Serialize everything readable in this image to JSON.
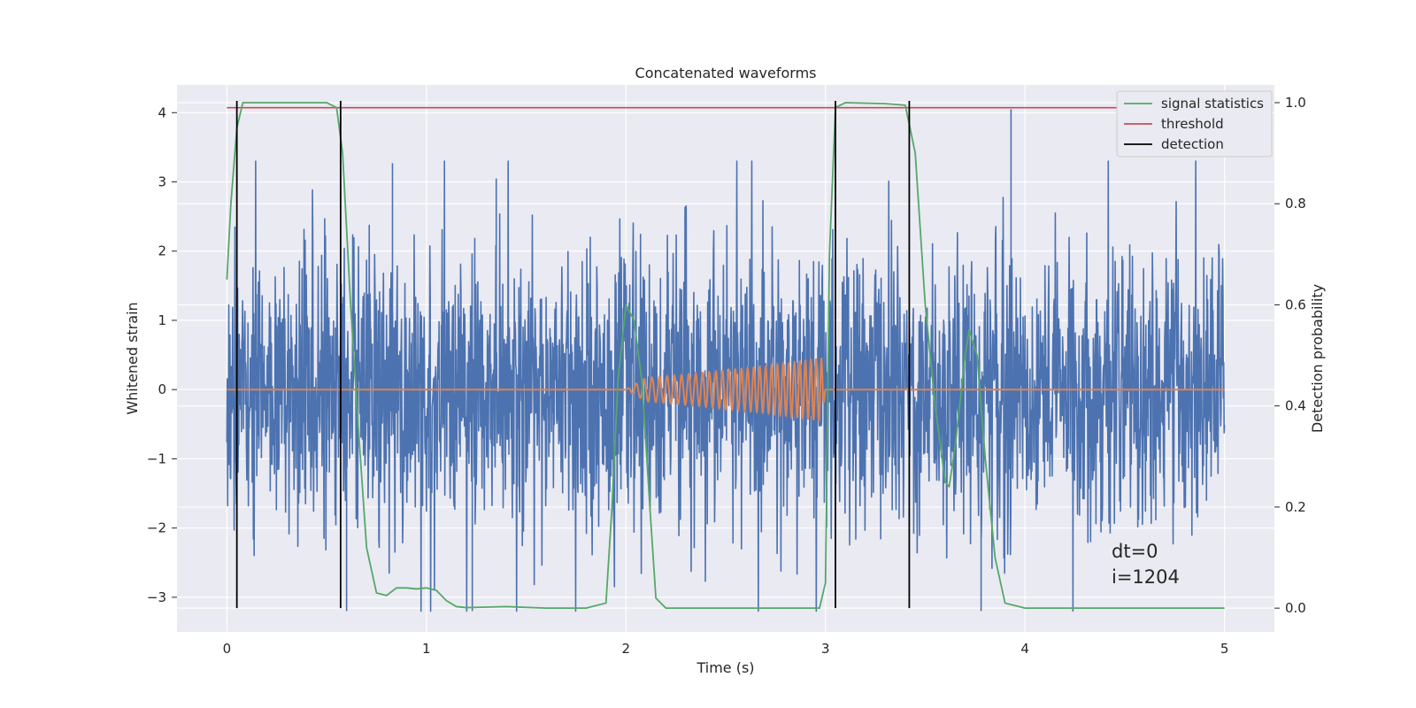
{
  "chart_data": {
    "type": "line",
    "title": "Concatenated waveforms",
    "xlabel": "Time (s)",
    "ylabel": "Whitened strain",
    "y2label": "Detection probability",
    "xlim": [
      -0.25,
      5.25
    ],
    "ylim": [
      -3.5,
      4.4
    ],
    "y2lim": [
      -0.047,
      1.035
    ],
    "x_ticks": [
      "0",
      "1",
      "2",
      "3",
      "4",
      "5"
    ],
    "y_ticks": [
      "−3",
      "−2",
      "−1",
      "0",
      "1",
      "2",
      "3",
      "4"
    ],
    "y2_ticks": [
      "0.0",
      "0.2",
      "0.4",
      "0.6",
      "0.8",
      "1.0"
    ],
    "grid": true,
    "legend_position": "top-right",
    "legend": [
      {
        "label": "signal statistics",
        "color": "#55a868"
      },
      {
        "label": "threshold",
        "color": "#c44e52"
      },
      {
        "label": "detection",
        "color": "#000000"
      }
    ],
    "series": [
      {
        "name": "",
        "axis": "left",
        "color": "#4c72b0",
        "kind": "noise",
        "x_range": [
          0,
          5
        ],
        "amplitude_approx": [
          -3.2,
          3.3
        ],
        "spikes": [
          {
            "x": 0.83,
            "y": 3.27
          },
          {
            "x": 1.35,
            "y": 3.05
          },
          {
            "x": 3.93,
            "y": 4.05
          },
          {
            "x": 1.23,
            "y": -3.2
          },
          {
            "x": 3.78,
            "y": -3.2
          },
          {
            "x": 0.6,
            "y": -3.2
          }
        ]
      },
      {
        "name": "",
        "axis": "left",
        "color": "#dd8452",
        "kind": "chirp",
        "x": [
          0,
          2.0,
          2.1,
          2.3,
          2.5,
          2.7,
          2.9,
          2.98,
          3.0,
          5.0
        ],
        "envelope": [
          0,
          0,
          0.17,
          0.22,
          0.28,
          0.34,
          0.42,
          0.46,
          0,
          0
        ]
      },
      {
        "name": "signal statistics",
        "axis": "right",
        "color": "#55a868",
        "x": [
          0,
          0.02,
          0.05,
          0.08,
          0.15,
          0.3,
          0.5,
          0.55,
          0.58,
          0.62,
          0.66,
          0.7,
          0.75,
          0.8,
          0.85,
          0.9,
          0.95,
          1.0,
          1.05,
          1.1,
          1.15,
          1.2,
          1.3,
          1.4,
          1.6,
          1.8,
          1.9,
          1.93,
          1.96,
          2.0,
          2.04,
          2.08,
          2.12,
          2.15,
          2.2,
          2.5,
          2.8,
          2.97,
          3.0,
          3.02,
          3.05,
          3.1,
          3.3,
          3.4,
          3.45,
          3.5,
          3.55,
          3.6,
          3.62,
          3.65,
          3.7,
          3.72,
          3.76,
          3.8,
          3.85,
          3.9,
          4.0,
          4.5,
          5.0
        ],
        "y": [
          0.65,
          0.8,
          0.95,
          1.0,
          1.0,
          1.0,
          1.0,
          0.99,
          0.9,
          0.6,
          0.35,
          0.12,
          0.03,
          0.025,
          0.04,
          0.04,
          0.038,
          0.04,
          0.035,
          0.015,
          0.003,
          0.001,
          0.002,
          0.003,
          0.0,
          0.0,
          0.01,
          0.2,
          0.45,
          0.6,
          0.57,
          0.45,
          0.2,
          0.02,
          0.0,
          0.0,
          0.0,
          0.0,
          0.05,
          0.7,
          0.99,
          1.0,
          0.998,
          0.995,
          0.9,
          0.6,
          0.4,
          0.25,
          0.24,
          0.32,
          0.5,
          0.55,
          0.5,
          0.3,
          0.1,
          0.01,
          0.0,
          0.0,
          0.0
        ]
      },
      {
        "name": "threshold",
        "axis": "right",
        "color": "#c44e52",
        "x": [
          0,
          5
        ],
        "y": [
          0.99,
          0.99
        ]
      }
    ],
    "detections": [
      0.05,
      0.57,
      3.05,
      3.42
    ],
    "detection_color": "#000000",
    "annotations": [
      "dt=0",
      "i=1204"
    ]
  }
}
